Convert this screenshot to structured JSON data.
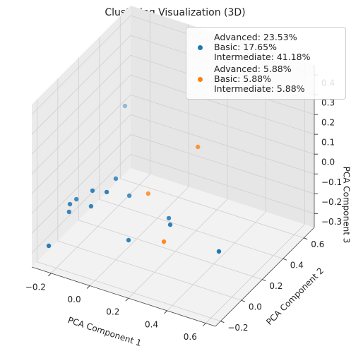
{
  "chart_data": {
    "type": "scatter3d",
    "title": "Clustering Visualization (3D)",
    "xlabel": "PCA Component 1",
    "ylabel": "PCA Component 2",
    "zlabel": "PCA Component 3",
    "xlim": [
      -0.3,
      0.65
    ],
    "ylim": [
      -0.25,
      0.7
    ],
    "zlim": [
      -0.37,
      0.45
    ],
    "xticks": [
      -0.2,
      0.0,
      0.2,
      0.4,
      0.6
    ],
    "yticks": [
      -0.2,
      0.0,
      0.2,
      0.4,
      0.6
    ],
    "zticks": [
      -0.3,
      -0.2,
      -0.1,
      0.0,
      0.1,
      0.2,
      0.3,
      0.4
    ],
    "xtick_labels": [
      "−0.2",
      "0.0",
      "0.2",
      "0.4",
      "0.6"
    ],
    "ytick_labels": [
      "−0.2",
      "0.0",
      "0.2",
      "0.4",
      "0.6"
    ],
    "ztick_labels": [
      "−0.3",
      "−0.2",
      "−0.1",
      "0.0",
      "0.1",
      "0.2",
      "0.3",
      "0.4"
    ],
    "grid": true,
    "legend": "upper right",
    "series": [
      {
        "name": "Advanced: 23.53%\nBasic: 17.65%\nIntermediate: 41.18%",
        "color": "#1f77b4",
        "x": [
          -0.184,
          -0.063,
          -0.107,
          -0.046,
          -0.2,
          -0.206,
          -0.211,
          -0.115,
          -0.253,
          -0.007,
          0.172,
          0.203,
          0.037,
          0.498
        ],
        "y": [
          0.43,
          0.117,
          -0.025,
          -0.002,
          -0.007,
          -0.058,
          -0.057,
          -0.024,
          -0.174,
          0.143,
          0.19,
          0.146,
          0.054,
          0.066
        ],
        "z": [
          0.122,
          -0.042,
          -0.042,
          -0.042,
          -0.124,
          -0.124,
          -0.165,
          -0.124,
          -0.288,
          -0.124,
          -0.206,
          -0.206,
          -0.288,
          -0.206
        ]
      },
      {
        "name": "Advanced: 5.88%\nBasic: 5.88%\nIntermediate: 5.88%",
        "color": "#ff7f0e",
        "x": [
          0.261,
          0.059,
          0.181
        ],
        "y": [
          0.304,
          0.202,
          0.126
        ],
        "z": [
          0.122,
          -0.124,
          -0.288
        ]
      }
    ]
  }
}
